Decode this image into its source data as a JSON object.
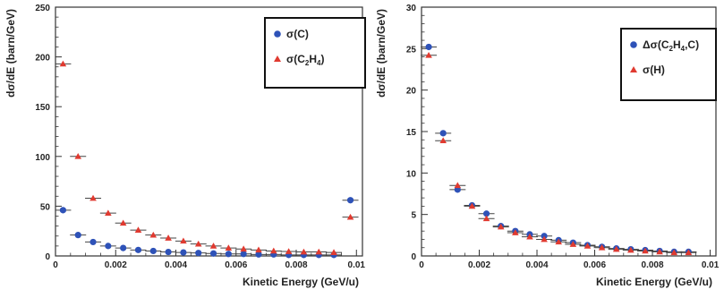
{
  "chart_data": [
    {
      "type": "scatter",
      "xlabel": "Kinetic Energy (GeV/u)",
      "ylabel": "dσ/dE (barn/GeV)",
      "xlim": [
        0,
        0.0102
      ],
      "ylim": [
        0,
        250
      ],
      "xticks": [
        "0",
        "0.002",
        "0.004",
        "0.006",
        "0.008",
        "0.01"
      ],
      "yticks": [
        "0",
        "50",
        "100",
        "150",
        "200",
        "250"
      ],
      "legend": {
        "position": "top-right",
        "entries": [
          {
            "marker": "circle",
            "color": "#2e52b8",
            "label": "σ(C)"
          },
          {
            "marker": "triangle",
            "color": "#e03a30",
            "label_main": "σ(C",
            "label_sub1": "2",
            "label_mid": "H",
            "label_sub2": "4",
            "label_end": ")"
          }
        ]
      },
      "series": [
        {
          "marker": "circle",
          "color": "#2e52b8",
          "x": [
            0.00025,
            0.00075,
            0.00125,
            0.00175,
            0.00225,
            0.00275,
            0.00325,
            0.00375,
            0.00425,
            0.00475,
            0.00525,
            0.00575,
            0.00625,
            0.00675,
            0.00725,
            0.00775,
            0.00825,
            0.00875,
            0.00925,
            0.0098
          ],
          "y": [
            46,
            21,
            14,
            10,
            8,
            6,
            5,
            4,
            3.5,
            3,
            2.5,
            2,
            2,
            1.5,
            1.5,
            1,
            1,
            1,
            1,
            56
          ]
        },
        {
          "marker": "triangle",
          "color": "#e03a30",
          "x": [
            0.00025,
            0.00075,
            0.00125,
            0.00175,
            0.00225,
            0.00275,
            0.00325,
            0.00375,
            0.00425,
            0.00475,
            0.00525,
            0.00575,
            0.00625,
            0.00675,
            0.00725,
            0.00775,
            0.00825,
            0.00875,
            0.00925,
            0.0098
          ],
          "y": [
            193,
            100,
            58,
            43,
            33,
            26,
            21,
            18,
            15,
            12,
            10,
            8,
            7,
            6,
            5,
            4.5,
            4,
            4,
            3.5,
            39
          ]
        }
      ]
    },
    {
      "type": "scatter",
      "xlabel": "Kinetic Energy (GeV/u)",
      "ylabel": "dσ/dE (barn/GeV)",
      "xlim": [
        0,
        0.0102
      ],
      "ylim": [
        0,
        30
      ],
      "xticks": [
        "0",
        "0.002",
        "0.004",
        "0.006",
        "0.008",
        "0.01"
      ],
      "yticks": [
        "0",
        "5",
        "10",
        "15",
        "20",
        "25",
        "30"
      ],
      "legend": {
        "position": "top-right",
        "entries": [
          {
            "marker": "circle",
            "color": "#2e52b8",
            "label_main": "Δσ(C",
            "label_sub1": "2",
            "label_mid": "H",
            "label_sub2": "4",
            "label_end": ",C)"
          },
          {
            "marker": "triangle",
            "color": "#e03a30",
            "label": "σ(H)"
          }
        ]
      },
      "series": [
        {
          "marker": "circle",
          "color": "#2e52b8",
          "x": [
            0.00025,
            0.00075,
            0.00125,
            0.00175,
            0.00225,
            0.00275,
            0.00325,
            0.00375,
            0.00425,
            0.00475,
            0.00525,
            0.00575,
            0.00625,
            0.00675,
            0.00725,
            0.00775,
            0.00825,
            0.00875,
            0.00925
          ],
          "y": [
            25.2,
            14.8,
            8.0,
            6.1,
            5.1,
            3.6,
            3.0,
            2.6,
            2.4,
            1.9,
            1.6,
            1.3,
            1.1,
            0.9,
            0.8,
            0.7,
            0.6,
            0.5,
            0.5
          ]
        },
        {
          "marker": "triangle",
          "color": "#e03a30",
          "x": [
            0.00025,
            0.00075,
            0.00125,
            0.00175,
            0.00225,
            0.00275,
            0.00325,
            0.00375,
            0.00425,
            0.00475,
            0.00525,
            0.00575,
            0.00625,
            0.00675,
            0.00725,
            0.00775,
            0.00825,
            0.00875,
            0.00925
          ],
          "y": [
            24.2,
            13.9,
            8.5,
            6.0,
            4.5,
            3.5,
            2.8,
            2.3,
            2.0,
            1.7,
            1.4,
            1.2,
            1.0,
            0.8,
            0.7,
            0.6,
            0.5,
            0.4,
            0.4
          ]
        }
      ]
    }
  ]
}
